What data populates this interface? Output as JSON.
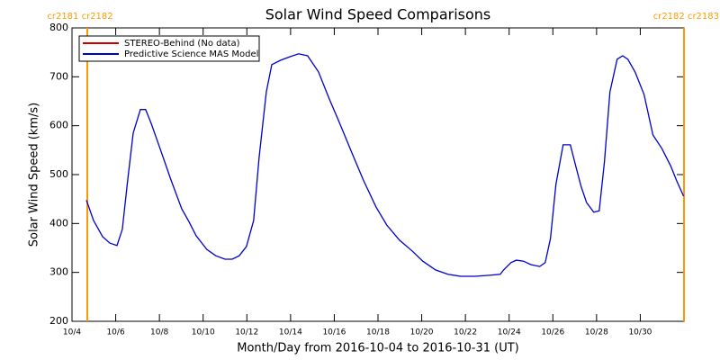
{
  "chart_data": {
    "type": "line",
    "title": "Solar Wind Speed Comparisons",
    "x_label": "Month/Day from 2016-10-04 to 2016-10-31 (UT)",
    "y_label": "Solar Wind Speed (km/s)",
    "xlim": [
      0,
      28
    ],
    "xticks": [
      {
        "value": 0,
        "label": "10/4"
      },
      {
        "value": 2,
        "label": "10/6"
      },
      {
        "value": 4,
        "label": "10/8"
      },
      {
        "value": 6,
        "label": "10/10"
      },
      {
        "value": 8,
        "label": "10/12"
      },
      {
        "value": 10,
        "label": "10/14"
      },
      {
        "value": 12,
        "label": "10/16"
      },
      {
        "value": 14,
        "label": "10/18"
      },
      {
        "value": 16,
        "label": "10/20"
      },
      {
        "value": 18,
        "label": "10/22"
      },
      {
        "value": 20,
        "label": "10/24"
      },
      {
        "value": 22,
        "label": "10/26"
      },
      {
        "value": 24,
        "label": "10/28"
      },
      {
        "value": 26,
        "label": "10/30"
      }
    ],
    "ylim": [
      200,
      800
    ],
    "yticks": [
      200,
      300,
      400,
      500,
      600,
      700,
      800
    ],
    "legend": "upper left",
    "markers": [
      {
        "x": 0.7,
        "label": "cr2181 cr2182",
        "color": "#ff9900"
      },
      {
        "x": 28,
        "label": "cr2182 cr2183",
        "color": "#ff9900"
      }
    ],
    "x": [
      0.66,
      0.99,
      1.4,
      1.73,
      2.06,
      2.3,
      2.55,
      2.8,
      3.13,
      3.37,
      3.62,
      4.03,
      4.53,
      5.02,
      5.35,
      5.68,
      6.17,
      6.58,
      7.0,
      7.33,
      7.65,
      7.98,
      8.31,
      8.56,
      8.89,
      9.14,
      9.55,
      9.96,
      10.37,
      10.78,
      11.28,
      11.77,
      12.18,
      12.43,
      12.84,
      13.33,
      13.91,
      14.4,
      14.98,
      15.56,
      16.05,
      16.63,
      17.2,
      17.78,
      18.44,
      19.09,
      19.59,
      19.75,
      20.08,
      20.33,
      20.66,
      20.99,
      21.4,
      21.65,
      21.89,
      22.14,
      22.47,
      22.8,
      23.05,
      23.29,
      23.54,
      23.87,
      24.12,
      24.36,
      24.61,
      24.94,
      25.19,
      25.43,
      25.76,
      26.17,
      26.58,
      26.99,
      27.4,
      27.65,
      27.98
    ],
    "series": [
      {
        "name": "STEREO-Behind (No data)",
        "color": "#cc0000",
        "values": [
          null,
          null,
          null,
          null,
          null,
          null,
          null,
          null,
          null,
          null,
          null,
          null,
          null,
          null,
          null,
          null,
          null,
          null,
          null,
          null,
          null,
          null,
          null,
          null,
          null,
          null,
          null,
          null,
          null,
          null,
          null,
          null,
          null,
          null,
          null,
          null,
          null,
          null,
          null,
          null,
          null,
          null,
          null,
          null,
          null,
          null,
          null,
          null,
          null,
          null,
          null,
          null,
          null,
          null,
          null,
          null,
          null,
          null,
          null,
          null,
          null,
          null,
          null,
          null,
          null,
          null,
          null,
          null,
          null,
          null,
          null,
          null,
          null,
          null,
          null
        ]
      },
      {
        "name": "Predictive Science MAS Model",
        "color": "#0000cc",
        "values": [
          448,
          406,
          373,
          360,
          355,
          388,
          489,
          585,
          633,
          633,
          605,
          553,
          489,
          430,
          404,
          375,
          347,
          334,
          327,
          327,
          334,
          353,
          406,
          535,
          669,
          725,
          734,
          741,
          747,
          743,
          710,
          655,
          612,
          585,
          541,
          489,
          434,
          397,
          366,
          344,
          323,
          305,
          296,
          292,
          292,
          294,
          296,
          305,
          320,
          325,
          323,
          316,
          312,
          320,
          369,
          480,
          561,
          561,
          517,
          476,
          443,
          423,
          426,
          526,
          669,
          736,
          743,
          736,
          710,
          664,
          581,
          553,
          517,
          489,
          456
        ]
      }
    ]
  }
}
